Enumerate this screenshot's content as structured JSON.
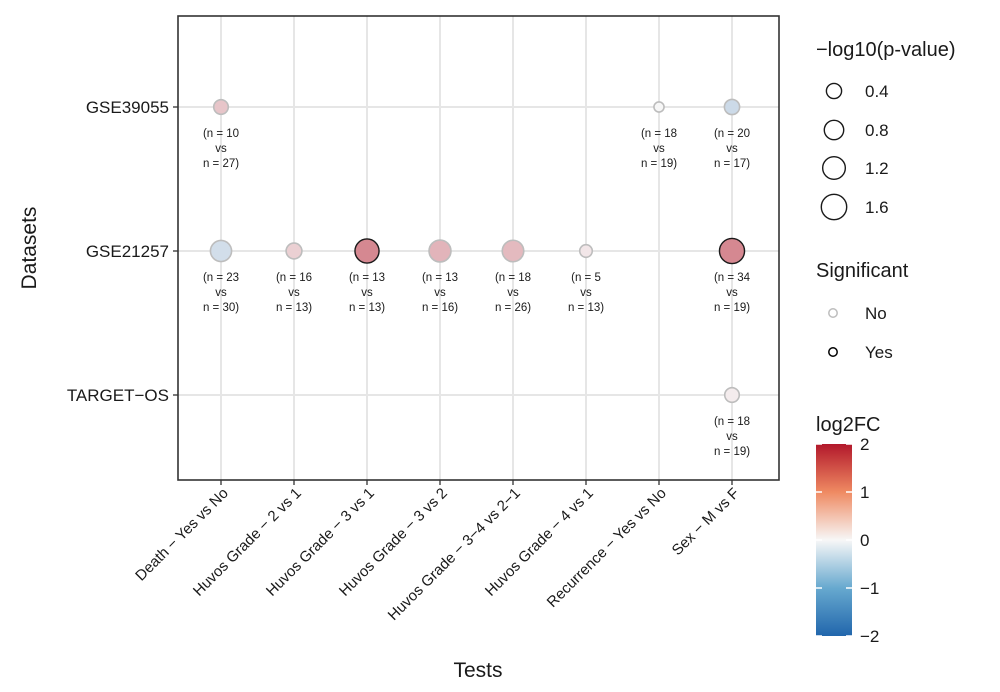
{
  "chart_data": {
    "type": "scatter",
    "subtype": "dot-plot",
    "xlabel": "Tests",
    "ylabel": "Datasets",
    "categories_x": [
      "Death − Yes vs No",
      "Huvos Grade − 2 vs 1",
      "Huvos Grade − 3 vs 1",
      "Huvos Grade − 3 vs 2",
      "Huvos Grade − 3−4 vs 2−1",
      "Huvos Grade − 4 vs 1",
      "Recurrence − Yes vs No",
      "Sex − M vs F"
    ],
    "categories_y": [
      "GSE39055",
      "GSE21257",
      "TARGET−OS"
    ],
    "points": [
      {
        "test": 0,
        "dataset": 0,
        "log2fc": 0.45,
        "neglog10p": 0.35,
        "significant": false,
        "label": [
          "(n = 10",
          "vs",
          "n = 27)"
        ]
      },
      {
        "test": 6,
        "dataset": 0,
        "log2fc": 0.0,
        "neglog10p": 0.1,
        "significant": false,
        "label": [
          "(n = 18",
          "vs",
          "n = 19)"
        ]
      },
      {
        "test": 7,
        "dataset": 0,
        "log2fc": -0.4,
        "neglog10p": 0.4,
        "significant": false,
        "label": [
          "(n = 20",
          "vs",
          "n = 17)"
        ]
      },
      {
        "test": 0,
        "dataset": 1,
        "log2fc": -0.35,
        "neglog10p": 1.0,
        "significant": false,
        "label": [
          "(n = 23",
          "vs",
          "n = 30)"
        ]
      },
      {
        "test": 1,
        "dataset": 1,
        "log2fc": 0.35,
        "neglog10p": 0.45,
        "significant": false,
        "label": [
          "(n = 16",
          "vs",
          "n = 13)"
        ]
      },
      {
        "test": 2,
        "dataset": 1,
        "log2fc": 1.0,
        "neglog10p": 1.4,
        "significant": true,
        "label": [
          "(n = 13",
          "vs",
          "n = 13)"
        ]
      },
      {
        "test": 3,
        "dataset": 1,
        "log2fc": 0.6,
        "neglog10p": 1.1,
        "significant": false,
        "label": [
          "(n = 13",
          "vs",
          "n = 16)"
        ]
      },
      {
        "test": 4,
        "dataset": 1,
        "log2fc": 0.55,
        "neglog10p": 1.05,
        "significant": false,
        "label": [
          "(n = 18",
          "vs",
          "n = 26)"
        ]
      },
      {
        "test": 5,
        "dataset": 1,
        "log2fc": 0.15,
        "neglog10p": 0.22,
        "significant": false,
        "label": [
          "(n = 5",
          "vs",
          "n = 13)"
        ]
      },
      {
        "test": 7,
        "dataset": 1,
        "log2fc": 1.0,
        "neglog10p": 1.55,
        "significant": true,
        "label": [
          "(n = 34",
          "vs",
          "n = 19)"
        ]
      },
      {
        "test": 7,
        "dataset": 2,
        "log2fc": 0.1,
        "neglog10p": 0.35,
        "significant": false,
        "label": [
          "(n = 18",
          "vs",
          "n = 19)"
        ]
      }
    ],
    "size_legend": {
      "title": "−log10(p-value)",
      "breaks": [
        0.4,
        0.8,
        1.2,
        1.6
      ]
    },
    "significant_legend": {
      "title": "Significant",
      "items": [
        {
          "label": "No",
          "stroke": "#bdbdbd"
        },
        {
          "label": "Yes",
          "stroke": "#000000"
        }
      ]
    },
    "color_legend": {
      "title": "log2FC",
      "range": [
        -2,
        2
      ],
      "breaks": [
        2,
        1,
        0,
        -1,
        -2
      ],
      "low": "#2166ac",
      "mid": "#f7f7f7",
      "high": "#b2182b"
    },
    "grid": true
  }
}
